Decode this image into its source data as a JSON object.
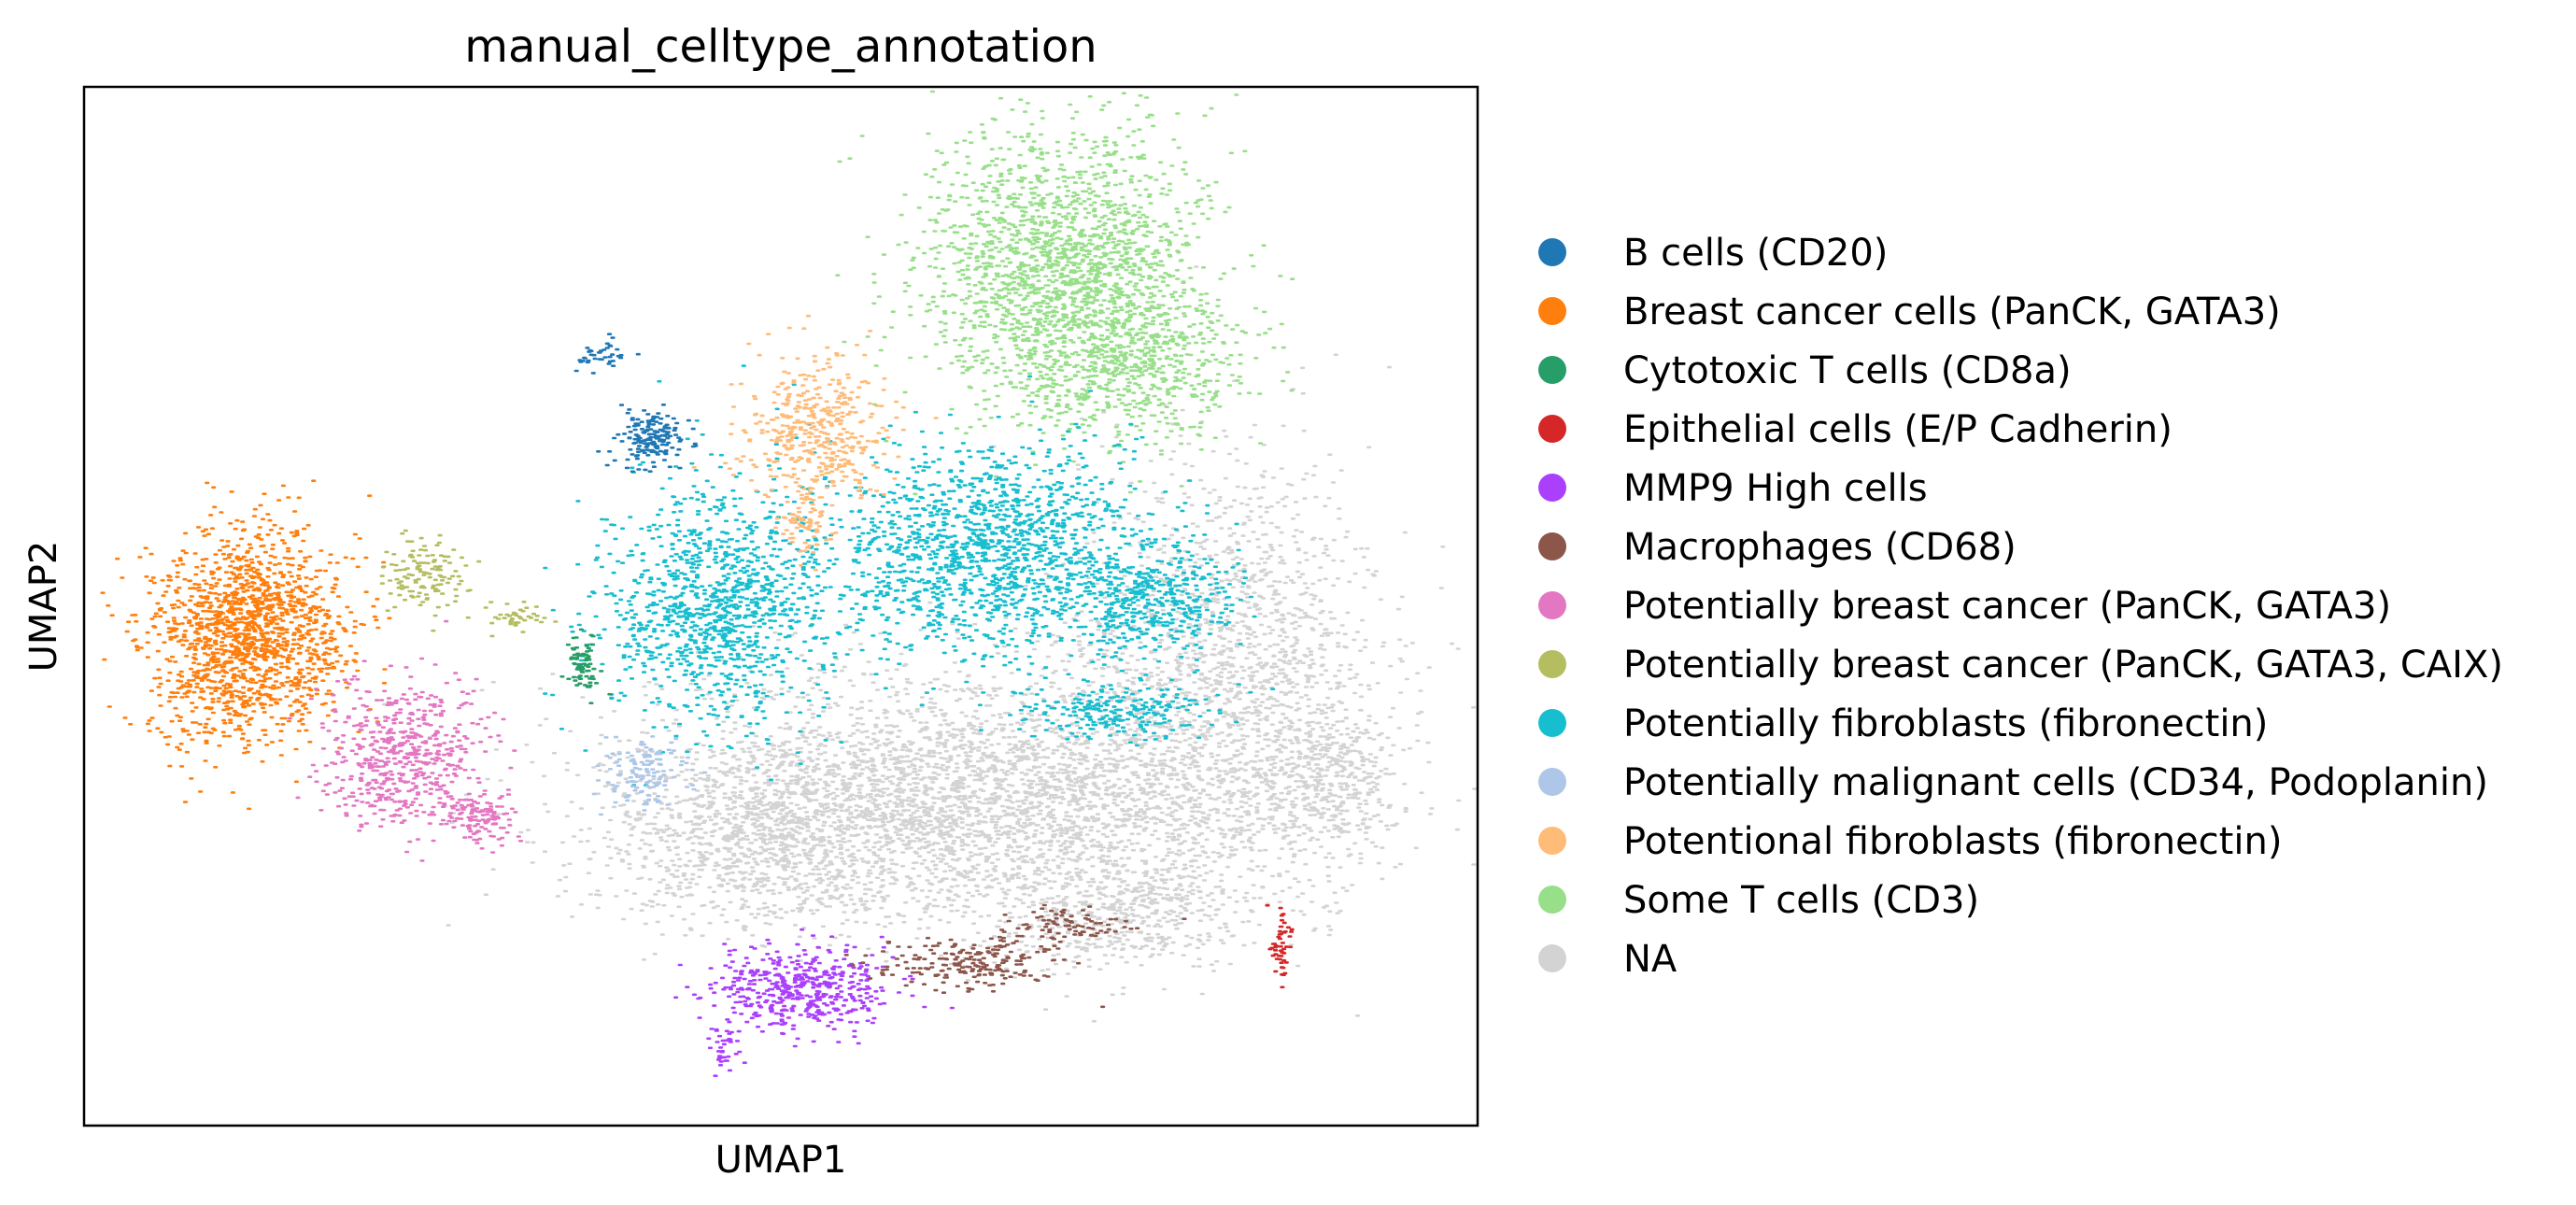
{
  "chart_data": {
    "type": "scatter",
    "title": "manual_celltype_annotation",
    "xlabel": "UMAP1",
    "ylabel": "UMAP2",
    "xticks": [],
    "yticks": [],
    "grid": false,
    "legend": "right",
    "series": [
      {
        "name": "B cells (CD20)",
        "color": "#1f77b4"
      },
      {
        "name": "Breast cancer cells (PanCK, GATA3)",
        "color": "#ff7f0e"
      },
      {
        "name": "Cytotoxic T cells (CD8a)",
        "color": "#279e68"
      },
      {
        "name": "Epithelial cells (E/P Cadherin)",
        "color": "#d62728"
      },
      {
        "name": "MMP9 High cells",
        "color": "#aa40fc"
      },
      {
        "name": "Macrophages (CD68)",
        "color": "#8c564b"
      },
      {
        "name": "Potentially breast cancer (PanCK, GATA3)",
        "color": "#e377c2"
      },
      {
        "name": "Potentially breast cancer (PanCK, GATA3, CAIX)",
        "color": "#b5bd61"
      },
      {
        "name": "Potentially fibroblasts (fibronectin)",
        "color": "#17becf"
      },
      {
        "name": "Potentially malignant cells (CD34, Podoplanin)",
        "color": "#aec7e8"
      },
      {
        "name": "Potentional fibroblasts (fibronectin)",
        "color": "#ffbb78"
      },
      {
        "name": "Some T cells (CD3)",
        "color": "#98df8a"
      },
      {
        "name": "NA",
        "color": "#d3d3d3"
      }
    ]
  }
}
